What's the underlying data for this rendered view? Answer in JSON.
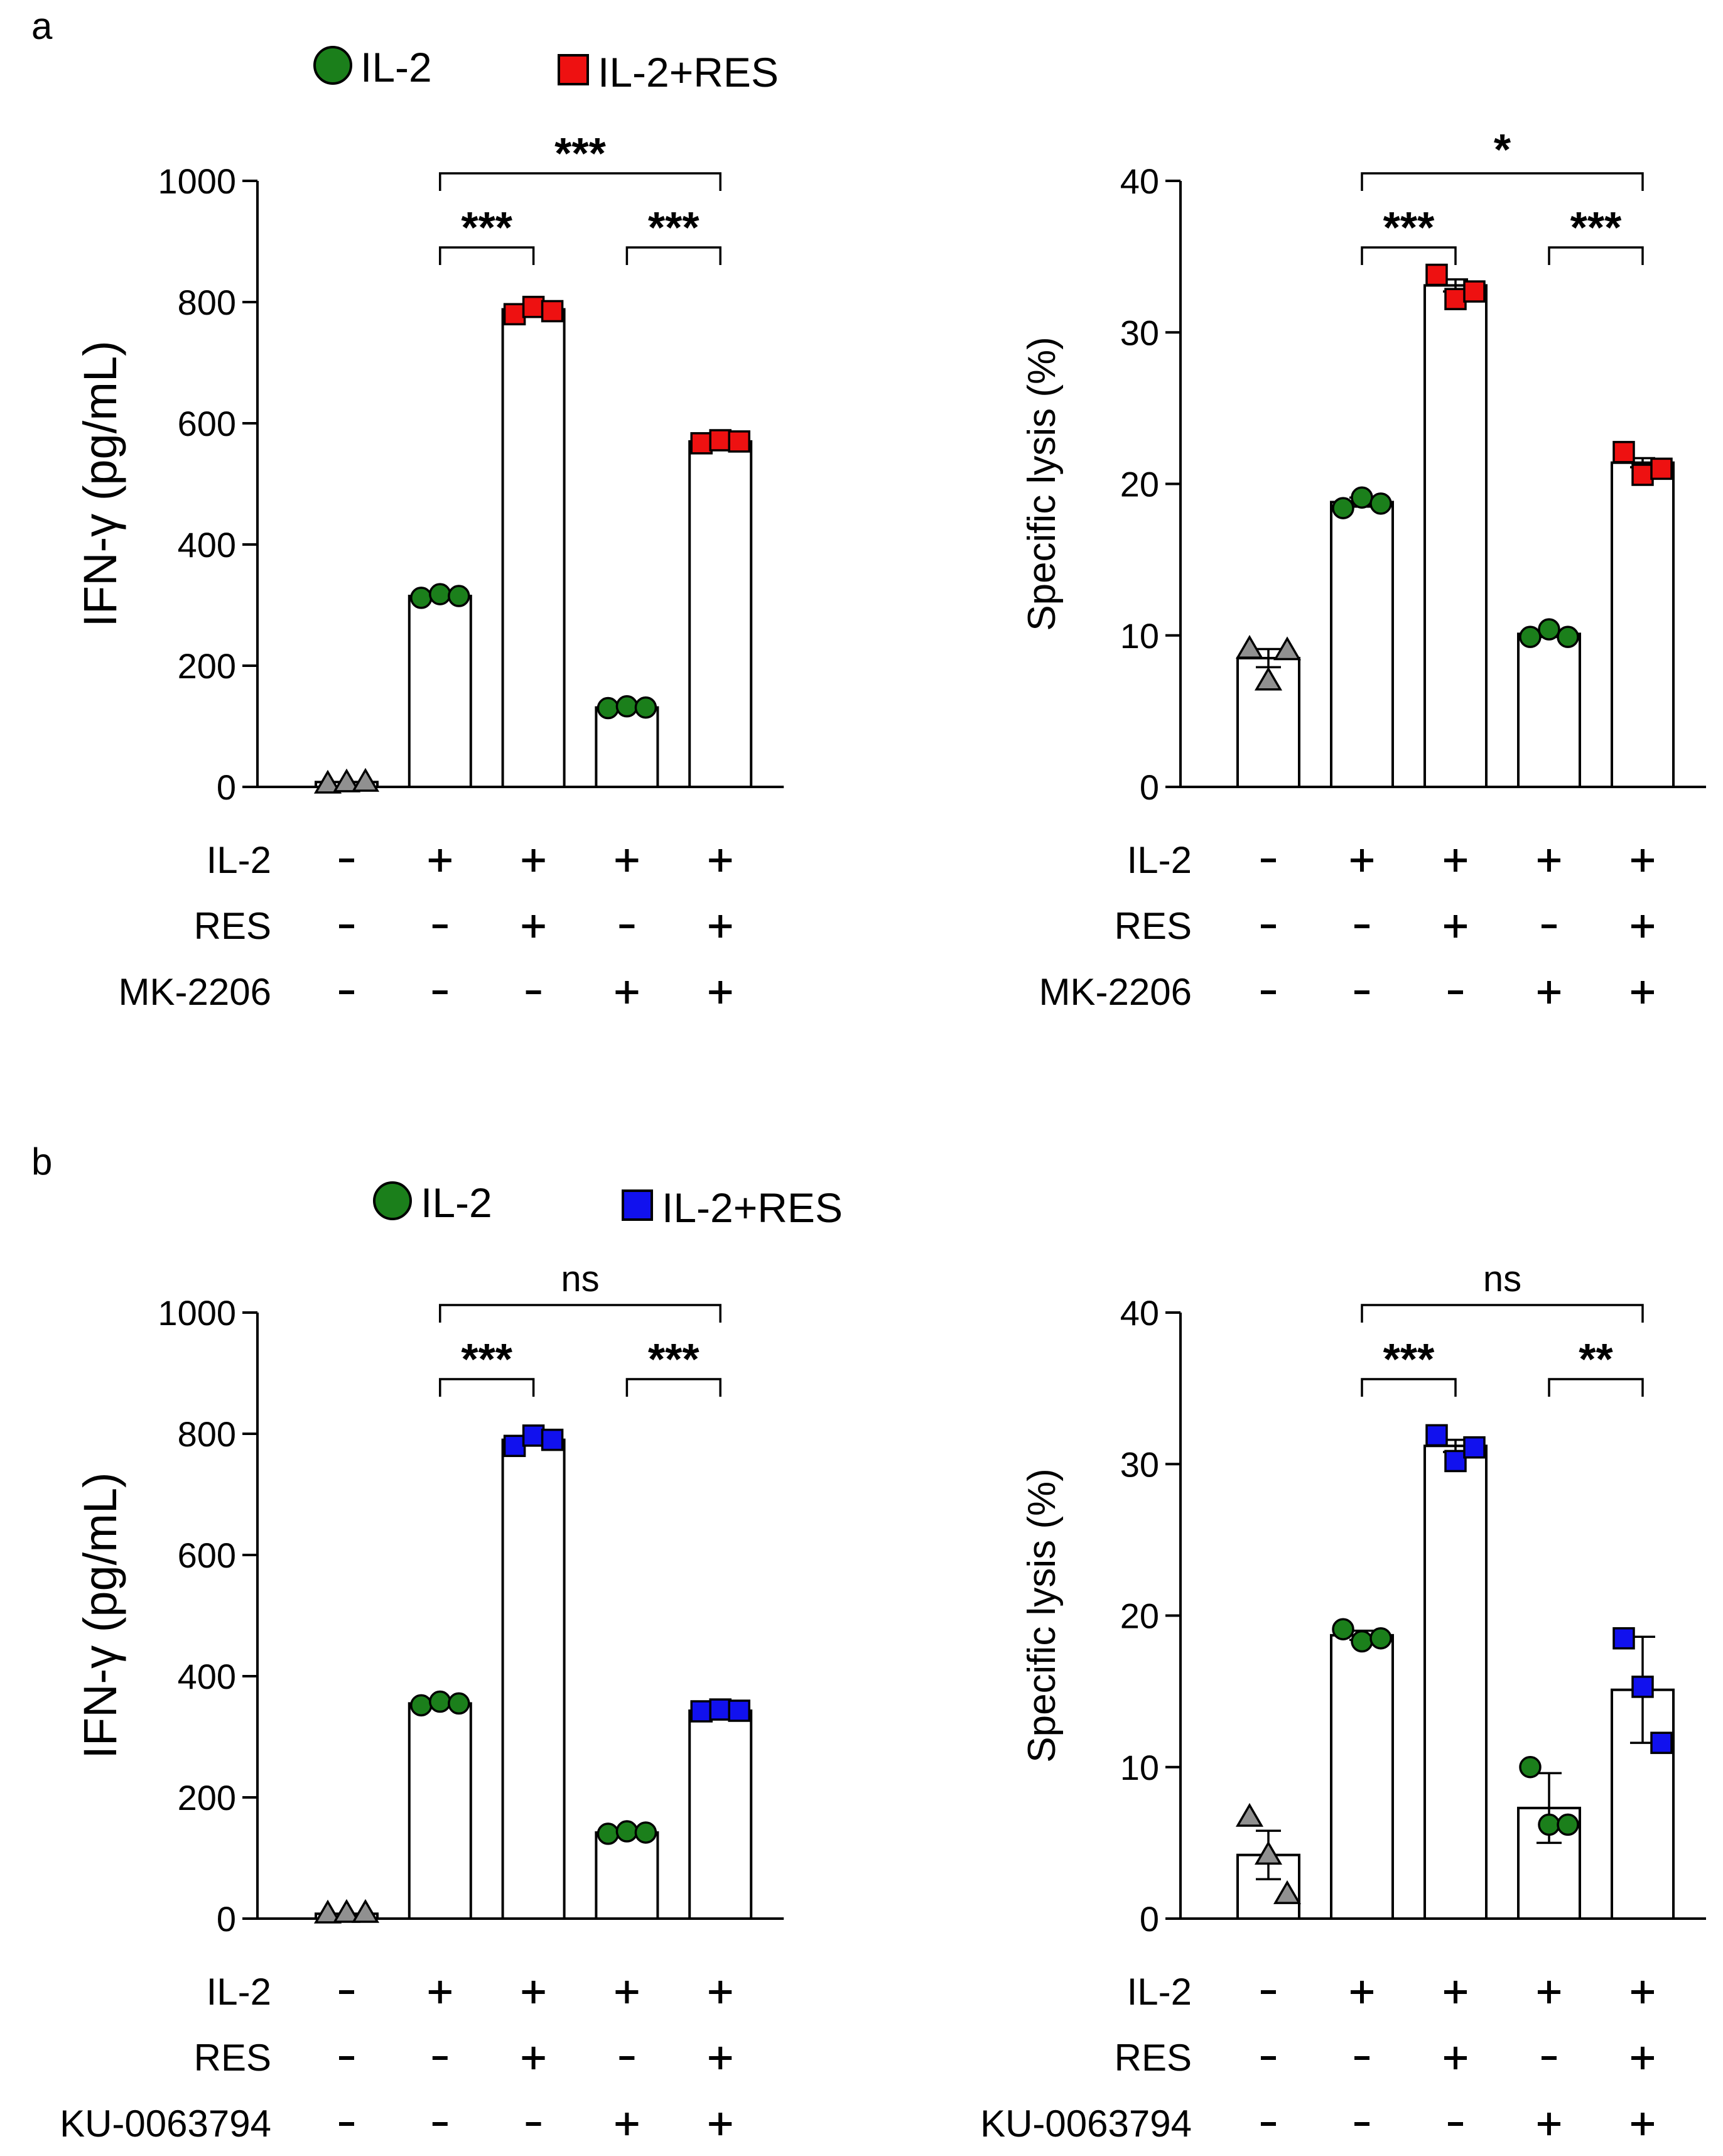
{
  "panels": [
    {
      "letter": "a",
      "legend": [
        {
          "label": "IL-2",
          "marker": "circle",
          "color": "#1b7f1b"
        },
        {
          "label": "IL-2+RES",
          "marker": "square",
          "color": "#ee1111"
        }
      ],
      "inhibitor_label": "MK-2206"
    },
    {
      "letter": "b",
      "legend": [
        {
          "label": "IL-2",
          "marker": "circle",
          "color": "#1b7f1b"
        },
        {
          "label": "IL-2+RES",
          "marker": "square",
          "color": "#1111ee"
        }
      ],
      "inhibitor_label": "KU-0063794"
    }
  ],
  "chart_data": [
    {
      "type": "bar",
      "panel": "a",
      "ylabel": "IFN-γ (pg/mL)",
      "ylim": [
        0,
        1000
      ],
      "yticks": [
        0,
        200,
        400,
        600,
        800,
        1000
      ],
      "groups": [
        {
          "mean": 8,
          "error": 0,
          "points": [
            5,
            7,
            8
          ],
          "marker": "triangle",
          "color": "#909090"
        },
        {
          "mean": 315,
          "error": 3,
          "points": [
            312,
            318,
            315
          ],
          "marker": "circle",
          "color": "#1b7f1b"
        },
        {
          "mean": 788,
          "error": 5,
          "points": [
            780,
            792,
            785
          ],
          "marker": "square",
          "color": "#ee1111"
        },
        {
          "mean": 131,
          "error": 2,
          "points": [
            130,
            133,
            131
          ],
          "marker": "circle",
          "color": "#1b7f1b"
        },
        {
          "mean": 570,
          "error": 3,
          "points": [
            567,
            572,
            570
          ],
          "marker": "square",
          "color": "#ee1111"
        }
      ],
      "conditions": [
        {
          "label": "IL-2",
          "values": [
            "-",
            "+",
            "+",
            "+",
            "+"
          ]
        },
        {
          "label": "RES",
          "values": [
            "-",
            "-",
            "+",
            "-",
            "+"
          ]
        },
        {
          "label": "MK-2206",
          "values": [
            "-",
            "-",
            "-",
            "+",
            "+"
          ]
        }
      ],
      "significance": [
        {
          "from": 1,
          "to": 4,
          "label": "***"
        },
        {
          "from": 1,
          "to": 2,
          "label": "***"
        },
        {
          "from": 3,
          "to": 4,
          "label": "***"
        }
      ]
    },
    {
      "type": "bar",
      "panel": "a",
      "ylabel": "Specific lysis (%)",
      "ylim": [
        0,
        40
      ],
      "yticks": [
        0,
        10,
        20,
        30,
        40
      ],
      "groups": [
        {
          "mean": 8.5,
          "error": 0.6,
          "points": [
            9.1,
            7.0,
            9.0
          ],
          "marker": "triangle",
          "color": "#909090"
        },
        {
          "mean": 18.8,
          "error": 0.3,
          "points": [
            18.4,
            19.1,
            18.7
          ],
          "marker": "circle",
          "color": "#1b7f1b"
        },
        {
          "mean": 33.1,
          "error": 0.4,
          "points": [
            33.8,
            32.2,
            32.7
          ],
          "marker": "square",
          "color": "#ee1111"
        },
        {
          "mean": 10.1,
          "error": 0.2,
          "points": [
            9.9,
            10.4,
            9.9
          ],
          "marker": "circle",
          "color": "#1b7f1b"
        },
        {
          "mean": 21.4,
          "error": 0.3,
          "points": [
            22.1,
            20.6,
            21.0
          ],
          "marker": "square",
          "color": "#ee1111"
        }
      ],
      "conditions": [
        {
          "label": "IL-2",
          "values": [
            "-",
            "+",
            "+",
            "+",
            "+"
          ]
        },
        {
          "label": "RES",
          "values": [
            "-",
            "-",
            "+",
            "-",
            "+"
          ]
        },
        {
          "label": "MK-2206",
          "values": [
            "-",
            "-",
            "-",
            "+",
            "+"
          ]
        }
      ],
      "significance": [
        {
          "from": 1,
          "to": 4,
          "label": "*"
        },
        {
          "from": 1,
          "to": 2,
          "label": "***"
        },
        {
          "from": 3,
          "to": 4,
          "label": "***"
        }
      ]
    },
    {
      "type": "bar",
      "panel": "b",
      "ylabel": "IFN-γ (pg/mL)",
      "ylim": [
        0,
        1000
      ],
      "yticks": [
        0,
        200,
        400,
        600,
        800,
        1000
      ],
      "groups": [
        {
          "mean": 8,
          "error": 0,
          "points": [
            8,
            9,
            9
          ],
          "marker": "triangle",
          "color": "#909090"
        },
        {
          "mean": 355,
          "error": 3,
          "points": [
            352,
            358,
            355
          ],
          "marker": "circle",
          "color": "#1b7f1b"
        },
        {
          "mean": 790,
          "error": 6,
          "points": [
            780,
            797,
            790
          ],
          "marker": "square",
          "color": "#1111ee"
        },
        {
          "mean": 142,
          "error": 2,
          "points": [
            140,
            144,
            142
          ],
          "marker": "circle",
          "color": "#1b7f1b"
        },
        {
          "mean": 343,
          "error": 2,
          "points": [
            342,
            345,
            343
          ],
          "marker": "square",
          "color": "#1111ee"
        }
      ],
      "conditions": [
        {
          "label": "IL-2",
          "values": [
            "-",
            "+",
            "+",
            "+",
            "+"
          ]
        },
        {
          "label": "RES",
          "values": [
            "-",
            "-",
            "+",
            "-",
            "+"
          ]
        },
        {
          "label": "KU-0063794",
          "values": [
            "-",
            "-",
            "-",
            "+",
            "+"
          ]
        }
      ],
      "significance": [
        {
          "from": 1,
          "to": 4,
          "label": "ns"
        },
        {
          "from": 1,
          "to": 2,
          "label": "***"
        },
        {
          "from": 3,
          "to": 4,
          "label": "***"
        }
      ]
    },
    {
      "type": "bar",
      "panel": "b",
      "ylabel": "Specific lysis (%)",
      "ylim": [
        0,
        40
      ],
      "yticks": [
        0,
        10,
        20,
        30,
        40
      ],
      "groups": [
        {
          "mean": 4.2,
          "error": 1.6,
          "points": [
            6.7,
            4.2,
            1.6
          ],
          "marker": "triangle",
          "color": "#909090"
        },
        {
          "mean": 18.7,
          "error": 0.3,
          "points": [
            19.1,
            18.3,
            18.5
          ],
          "marker": "circle",
          "color": "#1b7f1b"
        },
        {
          "mean": 31.2,
          "error": 0.4,
          "points": [
            31.9,
            30.2,
            31.1
          ],
          "marker": "square",
          "color": "#1111ee"
        },
        {
          "mean": 7.3,
          "error": 2.3,
          "points": [
            10.0,
            6.2,
            6.2
          ],
          "marker": "circle",
          "color": "#1b7f1b"
        },
        {
          "mean": 15.1,
          "error": 3.5,
          "points": [
            18.5,
            15.3,
            11.6
          ],
          "marker": "square",
          "color": "#1111ee"
        }
      ],
      "conditions": [
        {
          "label": "IL-2",
          "values": [
            "-",
            "+",
            "+",
            "+",
            "+"
          ]
        },
        {
          "label": "RES",
          "values": [
            "-",
            "-",
            "+",
            "-",
            "+"
          ]
        },
        {
          "label": "KU-0063794",
          "values": [
            "-",
            "-",
            "-",
            "+",
            "+"
          ]
        }
      ],
      "significance": [
        {
          "from": 1,
          "to": 4,
          "label": "ns"
        },
        {
          "from": 1,
          "to": 2,
          "label": "***"
        },
        {
          "from": 3,
          "to": 4,
          "label": "**"
        }
      ]
    }
  ]
}
